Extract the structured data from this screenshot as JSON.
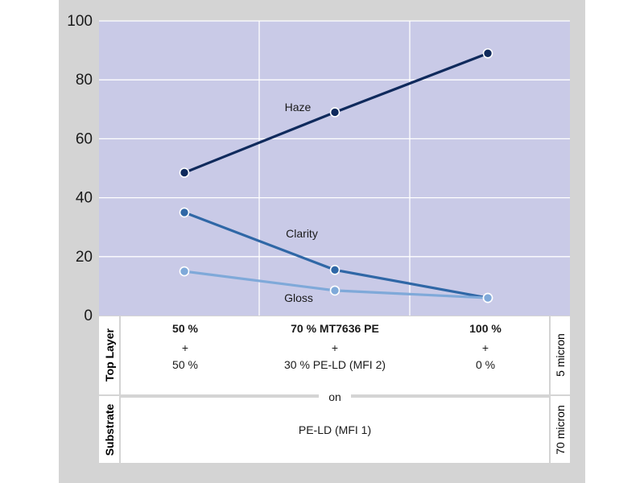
{
  "chart_data": {
    "type": "line",
    "ylim": [
      0,
      100
    ],
    "yticks": [
      0,
      20,
      40,
      60,
      80,
      100
    ],
    "grid": true,
    "categories": [
      "50 %",
      "70 % MT7636 PE",
      "100 %"
    ],
    "series": [
      {
        "name": "Haze",
        "values": [
          48.5,
          69,
          89
        ],
        "color": "#0f2a5c"
      },
      {
        "name": "Clarity",
        "values": [
          35,
          15.5,
          6
        ],
        "color": "#2f67a6"
      },
      {
        "name": "Gloss",
        "values": [
          15,
          8.5,
          6
        ],
        "color": "#7fa9d9"
      }
    ],
    "plot_background": "#c9cae7"
  },
  "table": {
    "top_layer_label": "Top Layer",
    "top_thickness": "5 micron",
    "columns": [
      {
        "head": "50 %",
        "plus": "+",
        "sub": "50 %"
      },
      {
        "head": "70 % MT7636 PE",
        "plus": "+",
        "sub": "30 % PE-LD (MFI 2)"
      },
      {
        "head": "100 %",
        "plus": "+",
        "sub": "0 %"
      }
    ],
    "on_text": "on",
    "substrate_label": "Substrate",
    "substrate_value": "PE-LD (MFI 1)",
    "substrate_thickness": "70 micron"
  }
}
